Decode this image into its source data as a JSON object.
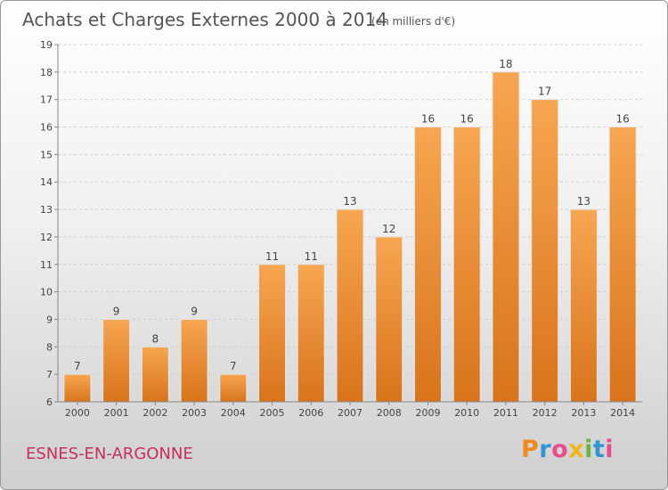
{
  "chart_data": {
    "type": "bar",
    "title": "Achats et Charges Externes 2000 à 2014",
    "subtitle": "(en milliers d'€)",
    "categories": [
      "2000",
      "2001",
      "2002",
      "2003",
      "2004",
      "2005",
      "2006",
      "2007",
      "2008",
      "2009",
      "2010",
      "2011",
      "2012",
      "2013",
      "2014"
    ],
    "values": [
      7,
      9,
      8,
      9,
      7,
      11,
      11,
      13,
      12,
      16,
      16,
      18,
      17,
      13,
      16
    ],
    "xlabel": "",
    "ylabel": "",
    "ylim": [
      6,
      19
    ],
    "yticks": [
      6,
      7,
      8,
      9,
      10,
      11,
      12,
      13,
      14,
      15,
      16,
      17,
      18,
      19
    ],
    "grid": "horizontal dashed",
    "bar_color": "#f0943a",
    "title_color": "#555555",
    "legend": "none"
  },
  "footer": {
    "location": "ESNES-EN-ARGONNE",
    "location_color": "#c4305f"
  },
  "logo": {
    "text": "Proxiti",
    "colors": [
      "#f08a1c",
      "#2f95d6",
      "#e84c8b",
      "#f2b716",
      "#6db33f",
      "#2f95d6",
      "#e84c8b"
    ]
  }
}
